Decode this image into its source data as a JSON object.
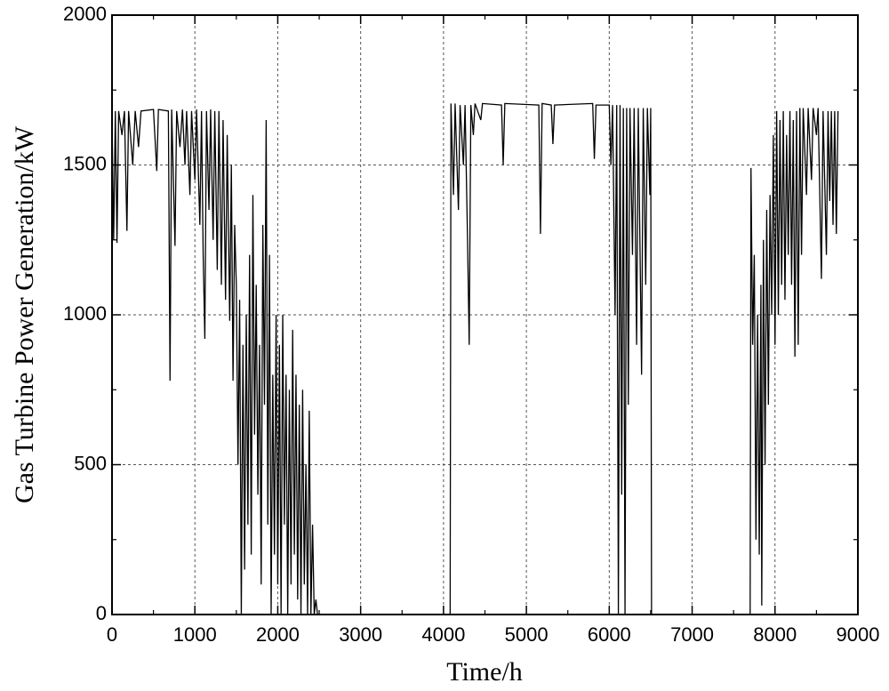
{
  "chart_data": {
    "type": "line",
    "xlabel": "Time/h",
    "ylabel": "Gas Turbine Power Generation/kW",
    "xlim": [
      0,
      9000
    ],
    "ylim": [
      0,
      2000
    ],
    "xticks": [
      0,
      1000,
      2000,
      3000,
      4000,
      5000,
      6000,
      7000,
      8000,
      9000
    ],
    "yticks": [
      0,
      500,
      1000,
      1500,
      2000
    ],
    "xminorticks": [
      500,
      1500,
      2500,
      3500,
      4500,
      5500,
      6500,
      7500,
      8500
    ],
    "yminorticks": [
      250,
      750,
      1250,
      1750
    ],
    "grid": true,
    "series": [
      {
        "color": "#000000",
        "x": [
          0,
          20,
          40,
          60,
          80,
          120,
          150,
          180,
          200,
          250,
          280,
          320,
          350,
          500,
          540,
          560,
          680,
          700,
          720,
          760,
          780,
          820,
          850,
          880,
          900,
          940,
          960,
          1000,
          1020,
          1060,
          1080,
          1100,
          1120,
          1140,
          1170,
          1190,
          1220,
          1240,
          1270,
          1290,
          1320,
          1340,
          1370,
          1390,
          1420,
          1440,
          1460,
          1480,
          1500,
          1520,
          1540,
          1560,
          1580,
          1600,
          1620,
          1640,
          1660,
          1680,
          1700,
          1720,
          1740,
          1760,
          1780,
          1800,
          1820,
          1840,
          1860,
          1880,
          1900,
          1920,
          1940,
          1960,
          1980,
          2000,
          2020,
          2040,
          2060,
          2080,
          2100,
          2120,
          2140,
          2160,
          2180,
          2200,
          2220,
          2240,
          2260,
          2280,
          2300,
          2320,
          2340,
          2360,
          2380,
          2400,
          2420,
          2440,
          2460,
          2480,
          4080,
          4090,
          4120,
          4140,
          4180,
          4200,
          4240,
          4260,
          4290,
          4310,
          4330,
          4360,
          4380,
          4450,
          4470,
          4700,
          4720,
          4740,
          5150,
          5170,
          5190,
          5300,
          5320,
          5340,
          5800,
          5820,
          5840,
          6000,
          6020,
          6040,
          6070,
          6090,
          6110,
          6130,
          6150,
          6170,
          6190,
          6210,
          6230,
          6250,
          6280,
          6300,
          6330,
          6350,
          6390,
          6410,
          6440,
          6460,
          6490,
          6500,
          6510,
          7700,
          7710,
          7730,
          7750,
          7770,
          7790,
          7810,
          7830,
          7840,
          7860,
          7880,
          7900,
          7920,
          7940,
          7960,
          7980,
          8000,
          8020,
          8040,
          8060,
          8080,
          8100,
          8120,
          8140,
          8160,
          8180,
          8200,
          8220,
          8240,
          8260,
          8280,
          8300,
          8320,
          8340,
          8380,
          8400,
          8440,
          8460,
          8500,
          8520,
          8560,
          8580,
          8620,
          8640,
          8660,
          8680,
          8700,
          8720,
          8740,
          8760
        ],
        "values": [
          1650,
          1250,
          1680,
          1240,
          1680,
          1600,
          1680,
          1280,
          1680,
          1500,
          1680,
          1560,
          1680,
          1685,
          1480,
          1685,
          1680,
          780,
          1685,
          1230,
          1680,
          1560,
          1685,
          1500,
          1680,
          1400,
          1680,
          1450,
          1685,
          1300,
          1680,
          1200,
          920,
          1680,
          1350,
          1685,
          1250,
          1680,
          1150,
          1680,
          1100,
          1650,
          1050,
          1600,
          980,
          1500,
          780,
          1300,
          1100,
          500,
          1050,
          0,
          900,
          150,
          1000,
          300,
          1200,
          200,
          1400,
          600,
          1100,
          400,
          900,
          100,
          1300,
          700,
          1650,
          300,
          1200,
          0,
          800,
          200,
          1000,
          100,
          900,
          0,
          1000,
          300,
          800,
          0,
          750,
          100,
          950,
          200,
          800,
          50,
          700,
          0,
          750,
          100,
          500,
          0,
          680,
          0,
          300,
          0,
          50,
          0,
          0,
          1705,
          1400,
          1705,
          1350,
          1700,
          1500,
          1700,
          1250,
          900,
          1700,
          1600,
          1705,
          1650,
          1705,
          1700,
          1500,
          1705,
          1700,
          1270,
          1705,
          1700,
          1570,
          1700,
          1705,
          1520,
          1700,
          1700,
          1500,
          1700,
          1000,
          1700,
          0,
          1700,
          400,
          1690,
          0,
          1690,
          700,
          1690,
          1200,
          1690,
          900,
          1690,
          800,
          1690,
          1100,
          1690,
          1400,
          1690,
          0,
          0,
          1490,
          900,
          1200,
          250,
          1000,
          200,
          1100,
          30,
          1250,
          500,
          1350,
          700,
          1400,
          1000,
          1600,
          900,
          1680,
          1000,
          1650,
          1100,
          1680,
          1050,
          1600,
          1200,
          1680,
          1100,
          1650,
          860,
          1680,
          900,
          1690,
          1200,
          1690,
          1400,
          1690,
          1450,
          1690,
          1600,
          1690,
          1120,
          1680,
          1200,
          1680,
          1380,
          1680,
          1300,
          1680,
          1270,
          1680
        ]
      }
    ]
  }
}
